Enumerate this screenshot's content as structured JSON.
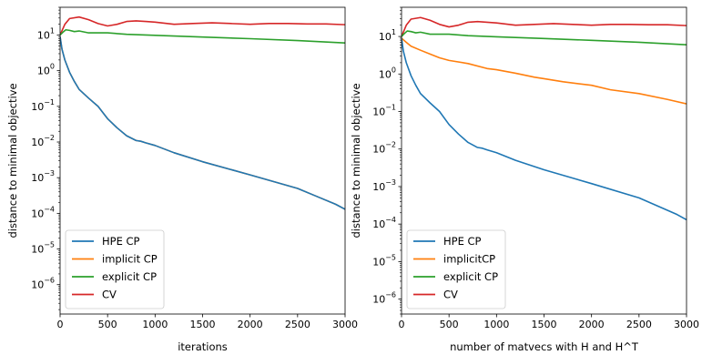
{
  "chart_data": [
    {
      "type": "line",
      "title": "",
      "xlabel": "iterations",
      "ylabel": "distance to minimal objective",
      "xlim": [
        0,
        3000
      ],
      "ylim": [
        1.5e-07,
        60
      ],
      "yscale": "log",
      "grid": false,
      "legend_position": "lower-left",
      "xticks": [
        {
          "v": 0,
          "label": "0"
        },
        {
          "v": 500,
          "label": "500"
        },
        {
          "v": 1000,
          "label": "1000"
        },
        {
          "v": 1500,
          "label": "1500"
        },
        {
          "v": 2000,
          "label": "2000"
        },
        {
          "v": 2500,
          "label": "2500"
        },
        {
          "v": 3000,
          "label": "3000"
        }
      ],
      "yticks": [
        {
          "v": 1e-06,
          "base": "10",
          "exp": "−6"
        },
        {
          "v": 1e-05,
          "base": "10",
          "exp": "−5"
        },
        {
          "v": 0.0001,
          "base": "10",
          "exp": "−4"
        },
        {
          "v": 0.001,
          "base": "10",
          "exp": "−3"
        },
        {
          "v": 0.01,
          "base": "10",
          "exp": "−2"
        },
        {
          "v": 0.1,
          "base": "10",
          "exp": "−1"
        },
        {
          "v": 1,
          "base": "10",
          "exp": "0"
        },
        {
          "v": 10,
          "base": "10",
          "exp": "1"
        }
      ],
      "series": [
        {
          "name": "HPE CP",
          "color": "#1f77b4",
          "x": [
            0,
            20,
            50,
            100,
            150,
            200,
            300,
            400,
            500,
            600,
            700,
            800,
            850,
            900,
            1000,
            1200,
            1500,
            2000,
            2500,
            2700,
            2900,
            3000
          ],
          "y": [
            9,
            4,
            2,
            0.9,
            0.5,
            0.3,
            0.17,
            0.1,
            0.045,
            0.025,
            0.015,
            0.011,
            0.0105,
            0.0095,
            0.008,
            0.005,
            0.0028,
            0.0012,
            0.0005,
            0.0003,
            0.00018,
            0.00013
          ]
        },
        {
          "name": "implicit CP",
          "color": "#ff7f0e",
          "x": [
            0,
            20,
            50,
            100,
            150,
            200,
            300,
            400,
            500,
            600,
            700,
            800,
            850,
            900,
            1000,
            1200,
            1500,
            2000,
            2500,
            2700,
            2900,
            3000
          ],
          "y": [
            9,
            4,
            2,
            0.9,
            0.5,
            0.3,
            0.17,
            0.1,
            0.045,
            0.025,
            0.015,
            0.011,
            0.0105,
            0.0095,
            0.008,
            0.005,
            0.0028,
            0.0012,
            0.0005,
            0.0003,
            0.00018,
            0.00013
          ]
        },
        {
          "name": "explicit CP",
          "color": "#2ca02c",
          "x": [
            0,
            30,
            60,
            100,
            150,
            200,
            300,
            400,
            500,
            700,
            1000,
            1500,
            2000,
            2500,
            3000
          ],
          "y": [
            10,
            12,
            14,
            13.5,
            12.5,
            13,
            11.5,
            11.5,
            11.5,
            10.5,
            9.8,
            8.8,
            7.9,
            7,
            6
          ]
        },
        {
          "name": "CV",
          "color": "#d62728",
          "x": [
            0,
            50,
            100,
            200,
            300,
            400,
            500,
            600,
            700,
            800,
            900,
            1000,
            1200,
            1400,
            1600,
            1800,
            2000,
            2200,
            2400,
            2600,
            2800,
            3000
          ],
          "y": [
            10,
            20,
            29,
            32,
            27,
            21,
            18,
            20,
            24,
            25,
            24,
            23,
            20,
            21,
            22,
            21,
            20,
            21,
            21,
            20.5,
            20.5,
            19.5
          ]
        }
      ]
    },
    {
      "type": "line",
      "title": "",
      "xlabel": "number of matvecs with H and H^T",
      "ylabel": "distance to minimal objective",
      "xlim": [
        0,
        3000
      ],
      "ylim": [
        4e-07,
        60
      ],
      "yscale": "log",
      "grid": false,
      "legend_position": "lower-left",
      "xticks": [
        {
          "v": 0,
          "label": "0"
        },
        {
          "v": 500,
          "label": "500"
        },
        {
          "v": 1000,
          "label": "1000"
        },
        {
          "v": 1500,
          "label": "1500"
        },
        {
          "v": 2000,
          "label": "2000"
        },
        {
          "v": 2500,
          "label": "2500"
        },
        {
          "v": 3000,
          "label": "3000"
        }
      ],
      "yticks": [
        {
          "v": 1e-06,
          "base": "10",
          "exp": "−6"
        },
        {
          "v": 1e-05,
          "base": "10",
          "exp": "−5"
        },
        {
          "v": 0.0001,
          "base": "10",
          "exp": "−4"
        },
        {
          "v": 0.001,
          "base": "10",
          "exp": "−3"
        },
        {
          "v": 0.01,
          "base": "10",
          "exp": "−2"
        },
        {
          "v": 0.1,
          "base": "10",
          "exp": "−1"
        },
        {
          "v": 1,
          "base": "10",
          "exp": "0"
        },
        {
          "v": 10,
          "base": "10",
          "exp": "1"
        }
      ],
      "series": [
        {
          "name": "HPE CP",
          "color": "#1f77b4",
          "x": [
            0,
            20,
            50,
            100,
            150,
            200,
            300,
            400,
            500,
            600,
            700,
            800,
            850,
            900,
            1000,
            1200,
            1500,
            2000,
            2500,
            2700,
            2900,
            3000
          ],
          "y": [
            9,
            4,
            2,
            0.9,
            0.5,
            0.3,
            0.17,
            0.1,
            0.045,
            0.025,
            0.015,
            0.011,
            0.0105,
            0.0095,
            0.008,
            0.005,
            0.0028,
            0.0012,
            0.0005,
            0.0003,
            0.00018,
            0.00013
          ]
        },
        {
          "name": "implicitCP",
          "color": "#ff7f0e",
          "x": [
            0,
            50,
            100,
            200,
            300,
            400,
            500,
            700,
            900,
            1000,
            1200,
            1400,
            1500,
            1700,
            2000,
            2200,
            2500,
            2800,
            3000
          ],
          "y": [
            9,
            7,
            5.5,
            4.3,
            3.4,
            2.7,
            2.3,
            1.9,
            1.4,
            1.3,
            1.05,
            0.82,
            0.75,
            0.62,
            0.5,
            0.38,
            0.3,
            0.21,
            0.16
          ]
        },
        {
          "name": "explicit CP",
          "color": "#2ca02c",
          "x": [
            0,
            30,
            60,
            100,
            150,
            200,
            300,
            400,
            500,
            700,
            1000,
            1500,
            2000,
            2500,
            3000
          ],
          "y": [
            10,
            12,
            14,
            13.5,
            12.5,
            13,
            11.5,
            11.5,
            11.5,
            10.5,
            9.8,
            8.8,
            7.9,
            7,
            6
          ]
        },
        {
          "name": "CV",
          "color": "#d62728",
          "x": [
            0,
            50,
            100,
            200,
            300,
            400,
            500,
            600,
            700,
            800,
            900,
            1000,
            1200,
            1400,
            1600,
            1800,
            2000,
            2200,
            2400,
            2600,
            2800,
            3000
          ],
          "y": [
            10,
            20,
            29,
            32,
            27,
            21,
            18,
            20,
            24,
            25,
            24,
            23,
            20,
            21,
            22,
            21,
            20,
            21,
            21,
            20.5,
            20.5,
            19.5
          ]
        }
      ]
    }
  ]
}
